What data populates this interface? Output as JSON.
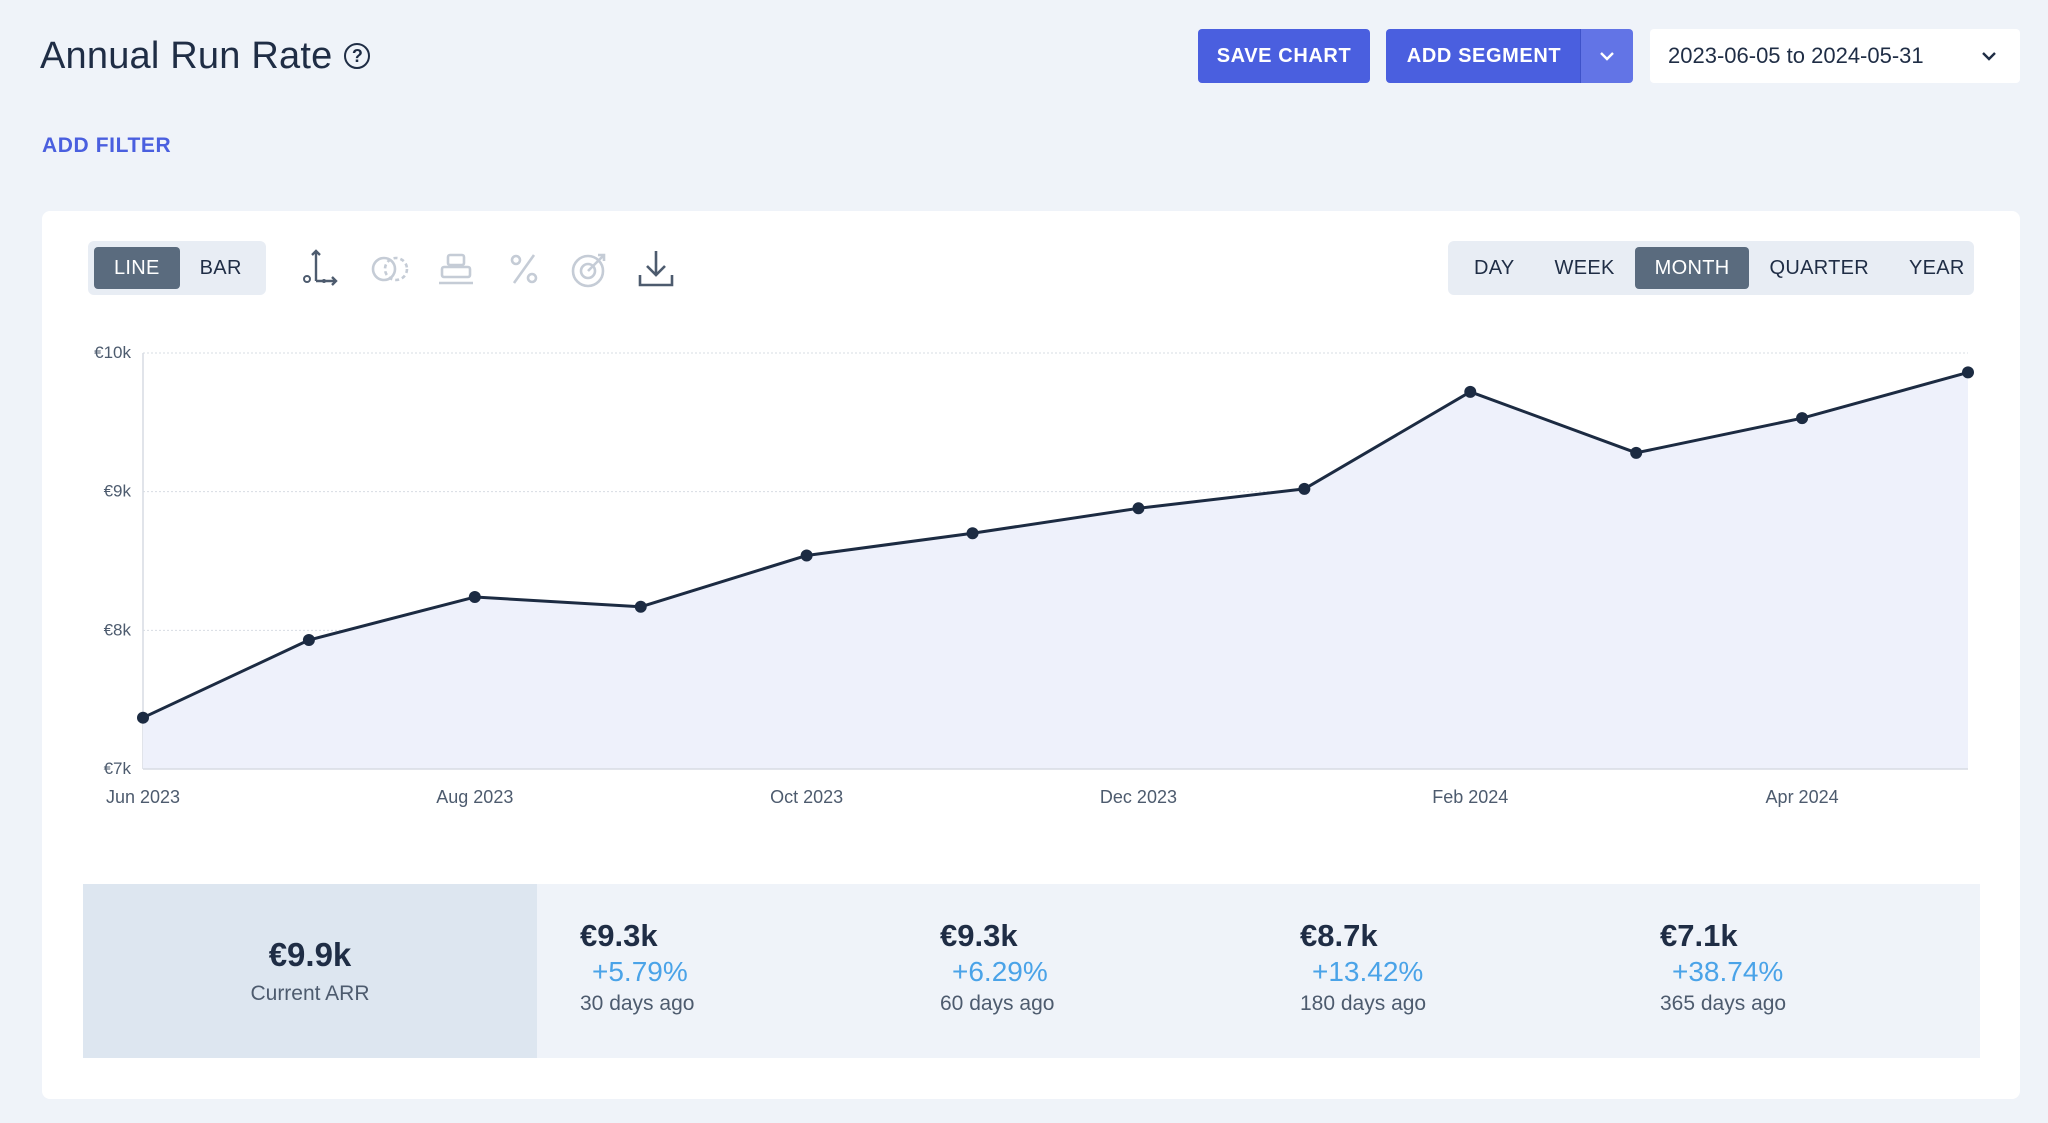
{
  "header": {
    "title": "Annual Run Rate",
    "help_icon": "question-circle-icon",
    "save_label": "SAVE CHART",
    "add_segment_label": "ADD SEGMENT",
    "date_range": "2023-06-05 to 2024-05-31",
    "add_filter_label": "ADD FILTER"
  },
  "toolbar": {
    "chart_types": [
      "LINE",
      "BAR"
    ],
    "chart_type_selected": "LINE",
    "intervals": [
      "DAY",
      "WEEK",
      "MONTH",
      "QUARTER",
      "YEAR"
    ],
    "interval_selected": "MONTH",
    "tools": [
      "axis-icon",
      "compare-icon",
      "stack-icon",
      "percent-icon",
      "goal-icon",
      "download-icon"
    ]
  },
  "chart_data": {
    "type": "area",
    "x": [
      "2023-06",
      "2023-07",
      "2023-08",
      "2023-09",
      "2023-10",
      "2023-11",
      "2023-12",
      "2024-01",
      "2024-02",
      "2024-03",
      "2024-04",
      "2024-05"
    ],
    "values": [
      7370,
      7930,
      8240,
      8170,
      8540,
      8700,
      8880,
      9020,
      9720,
      9280,
      9530,
      9860
    ],
    "x_tick_labels": [
      {
        "x": "2023-06",
        "label": "Jun 2023"
      },
      {
        "x": "2023-08",
        "label": "Aug 2023"
      },
      {
        "x": "2023-10",
        "label": "Oct 2023"
      },
      {
        "x": "2023-12",
        "label": "Dec 2023"
      },
      {
        "x": "2024-02",
        "label": "Feb 2024"
      },
      {
        "x": "2024-04",
        "label": "Apr 2024"
      }
    ],
    "y_ticks": [
      7000,
      8000,
      9000,
      10000
    ],
    "y_tick_labels": [
      "€7k",
      "€8k",
      "€9k",
      "€10k"
    ],
    "ylim": [
      7000,
      10000
    ],
    "grid": true,
    "line_color": "#1c2b42",
    "fill_color": "#eef1fb"
  },
  "summary": {
    "current": {
      "value": "€9.9k",
      "label": "Current ARR"
    },
    "stats": [
      {
        "value": "€9.3k",
        "change": "+5.79%",
        "label": "30 days ago"
      },
      {
        "value": "€9.3k",
        "change": "+6.29%",
        "label": "60 days ago"
      },
      {
        "value": "€8.7k",
        "change": "+13.42%",
        "label": "180 days ago"
      },
      {
        "value": "€7.1k",
        "change": "+38.74%",
        "label": "365 days ago"
      }
    ]
  },
  "colors": {
    "accent": "#4a5fdf",
    "positive": "#4aa3e8",
    "background": "#eff3f9"
  }
}
